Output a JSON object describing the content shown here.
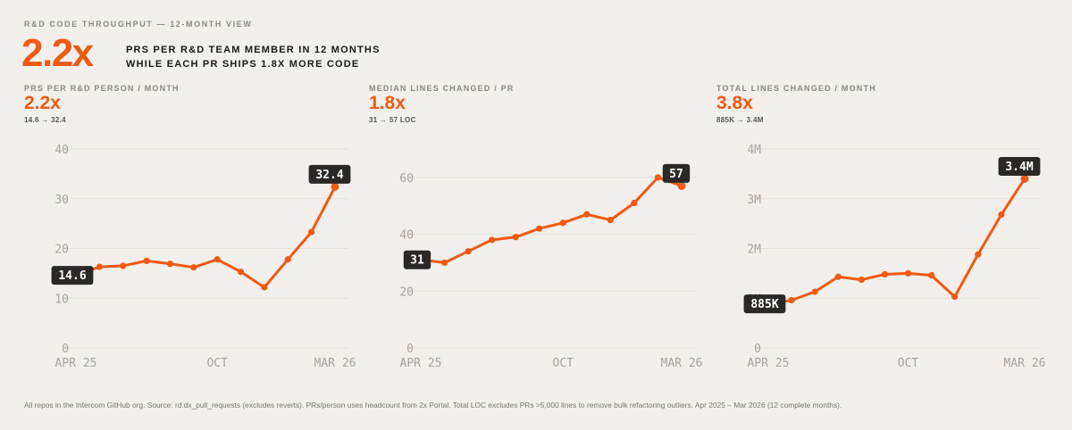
{
  "header": {
    "kicker": "R&D CODE THROUGHPUT — 12-MONTH VIEW",
    "hero_number": "2.2x",
    "hero_line1": "PRS PER R&D TEAM MEMBER IN 12 MONTHS",
    "hero_line2": "WHILE EACH PR SHIPS 1.8X MORE CODE"
  },
  "footer": {
    "note": "All repos in the Intercom GitHub org. Source: rd.dx_pull_requests (excludes reverts). PRs/person uses headcount from 2x Portal. Total LOC excludes PRs >5,000 lines to remove bulk refactoring outliers. Apr 2025 – Mar 2026 (12 complete months)."
  },
  "colors": {
    "accent": "#f05a12",
    "label_bg": "#2b2826",
    "axis_text": "#a8a39e",
    "grid": "#e4e0dc"
  },
  "panels": [
    {
      "title": "PRS PER R&D PERSON / MONTH",
      "stat": "2.2x",
      "sub": "14.6 → 32.4"
    },
    {
      "title": "MEDIAN LINES CHANGED / PR",
      "stat": "1.8x",
      "sub": "31 → 57 LOC"
    },
    {
      "title": "TOTAL LINES CHANGED / MONTH",
      "stat": "3.8x",
      "sub": "885K → 3.4M"
    }
  ],
  "chart_data": [
    {
      "type": "line",
      "x": [
        "Apr 25",
        "May 25",
        "Jun 25",
        "Jul 25",
        "Aug 25",
        "Sep 25",
        "Oct 25",
        "Nov 25",
        "Dec 25",
        "Jan 26",
        "Feb 26",
        "Mar 26"
      ],
      "series": [
        {
          "values": [
            14.6,
            16.3,
            16.5,
            17.5,
            16.9,
            16.2,
            17.8,
            15.3,
            12.2,
            17.8,
            23.3,
            32.4
          ]
        }
      ],
      "ylim": [
        0,
        40
      ],
      "yticks": [
        0,
        10,
        20,
        30,
        40
      ],
      "ytick_labels": [
        "0",
        "10",
        "20",
        "30",
        "40"
      ],
      "xtick_labels": [
        {
          "i": 0,
          "label": "APR 25"
        },
        {
          "i": 6,
          "label": "OCT"
        },
        {
          "i": 11,
          "label": "MAR 26"
        }
      ],
      "start_label": "14.6",
      "end_label": "32.4"
    },
    {
      "type": "line",
      "x": [
        "Apr 25",
        "May 25",
        "Jun 25",
        "Jul 25",
        "Aug 25",
        "Sep 25",
        "Oct 25",
        "Nov 25",
        "Dec 25",
        "Jan 26",
        "Feb 26",
        "Mar 26"
      ],
      "series": [
        {
          "values": [
            31,
            30,
            34,
            38,
            39,
            42,
            44,
            47,
            45,
            51,
            60,
            57
          ]
        }
      ],
      "ylim": [
        0,
        70
      ],
      "yticks": [
        0,
        20,
        40,
        60
      ],
      "ytick_labels": [
        "0",
        "20",
        "40",
        "60"
      ],
      "xtick_labels": [
        {
          "i": 0,
          "label": "APR 25"
        },
        {
          "i": 6,
          "label": "OCT"
        },
        {
          "i": 11,
          "label": "MAR 26"
        }
      ],
      "start_label": "31",
      "end_label": "57"
    },
    {
      "type": "line",
      "x": [
        "Apr 25",
        "May 25",
        "Jun 25",
        "Jul 25",
        "Aug 25",
        "Sep 25",
        "Oct 25",
        "Nov 25",
        "Dec 25",
        "Jan 26",
        "Feb 26",
        "Mar 26"
      ],
      "series": [
        {
          "values": [
            885000,
            960000,
            1130000,
            1430000,
            1370000,
            1480000,
            1500000,
            1460000,
            1030000,
            1880000,
            2680000,
            3400000
          ]
        }
      ],
      "ylim": [
        0,
        4000000
      ],
      "yticks": [
        0,
        1000000,
        2000000,
        3000000,
        4000000
      ],
      "ytick_labels": [
        "0",
        "1M",
        "2M",
        "3M",
        "4M"
      ],
      "xtick_labels": [
        {
          "i": 0,
          "label": "APR 25"
        },
        {
          "i": 6,
          "label": "OCT"
        },
        {
          "i": 11,
          "label": "MAR 26"
        }
      ],
      "start_label": "885K",
      "end_label": "3.4M"
    }
  ]
}
